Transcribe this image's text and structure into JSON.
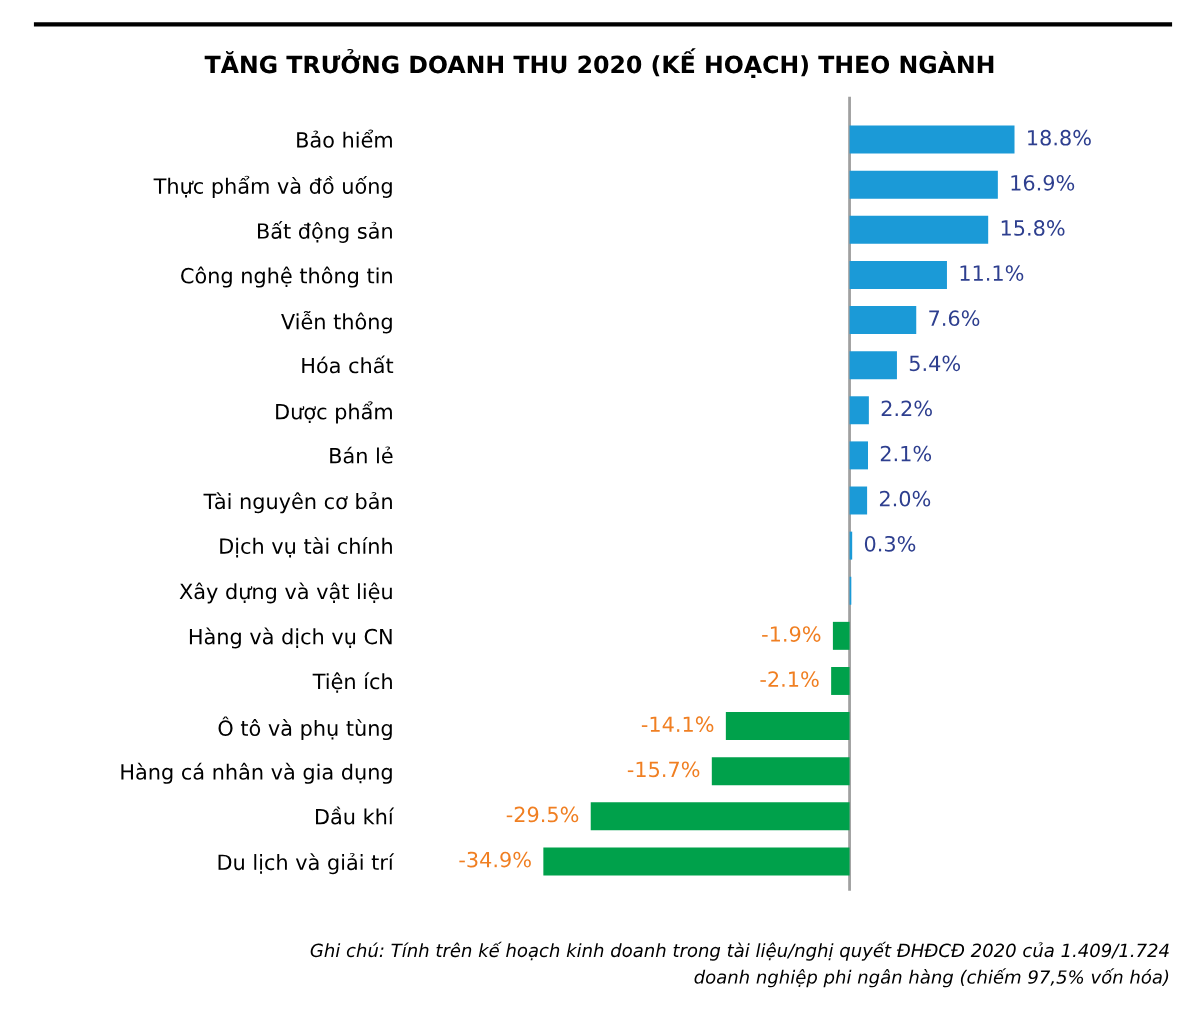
{
  "chart_data": {
    "type": "bar",
    "orientation": "horizontal",
    "title": "TĂNG TRƯỞNG DOANH THU 2020 (KẾ HOẠCH) THEO NGÀNH",
    "categories": [
      "Bảo hiểm",
      "Thực phẩm và đồ uống",
      "Bất động sản",
      "Công nghệ thông tin",
      "Viễn thông",
      "Hóa chất",
      "Dược phẩm",
      "Bán lẻ",
      "Tài nguyên cơ bản",
      "Dịch vụ tài chính",
      "Xây dựng và vật liệu",
      "Hàng và dịch vụ CN",
      "Tiện ích",
      "Ô tô và phụ tùng",
      "Hàng cá nhân và gia dụng",
      "Dầu khí",
      "Du lịch và giải trí"
    ],
    "values": [
      18.8,
      16.9,
      15.8,
      11.1,
      7.6,
      5.4,
      2.2,
      2.1,
      2.0,
      0.3,
      0.2,
      -1.9,
      -2.1,
      -14.1,
      -15.7,
      -29.5,
      -34.9
    ],
    "value_labels": [
      "18.8%",
      "16.9%",
      "15.8%",
      "11.1%",
      "7.6%",
      "5.4%",
      "2.2%",
      "2.1%",
      "2.0%",
      "0.3%",
      null,
      "-1.9%",
      "-2.1%",
      "-14.1%",
      "-15.7%",
      "-29.5%",
      "-34.9%"
    ],
    "colors": [
      "#1b9ad7",
      "#1b9ad7",
      "#1b9ad7",
      "#1b9ad7",
      "#1b9ad7",
      "#1b9ad7",
      "#1b9ad7",
      "#1b9ad7",
      "#1b9ad7",
      "#1b9ad7",
      "#1b9ad7",
      "#00a14b",
      "#00a14b",
      "#00a14b",
      "#00a14b",
      "#00a14b",
      "#00a14b"
    ],
    "legend": false,
    "grid": false,
    "annotations": [
      "Ghi chú: Tính trên kế hoạch kinh doanh trong tài liệu/nghị quyết ĐHĐCĐ 2020 của 1.409/1.724\ndoanh nghiệp phi ngân hàng (chiếm 97,5% vốn hóa)"
    ]
  }
}
